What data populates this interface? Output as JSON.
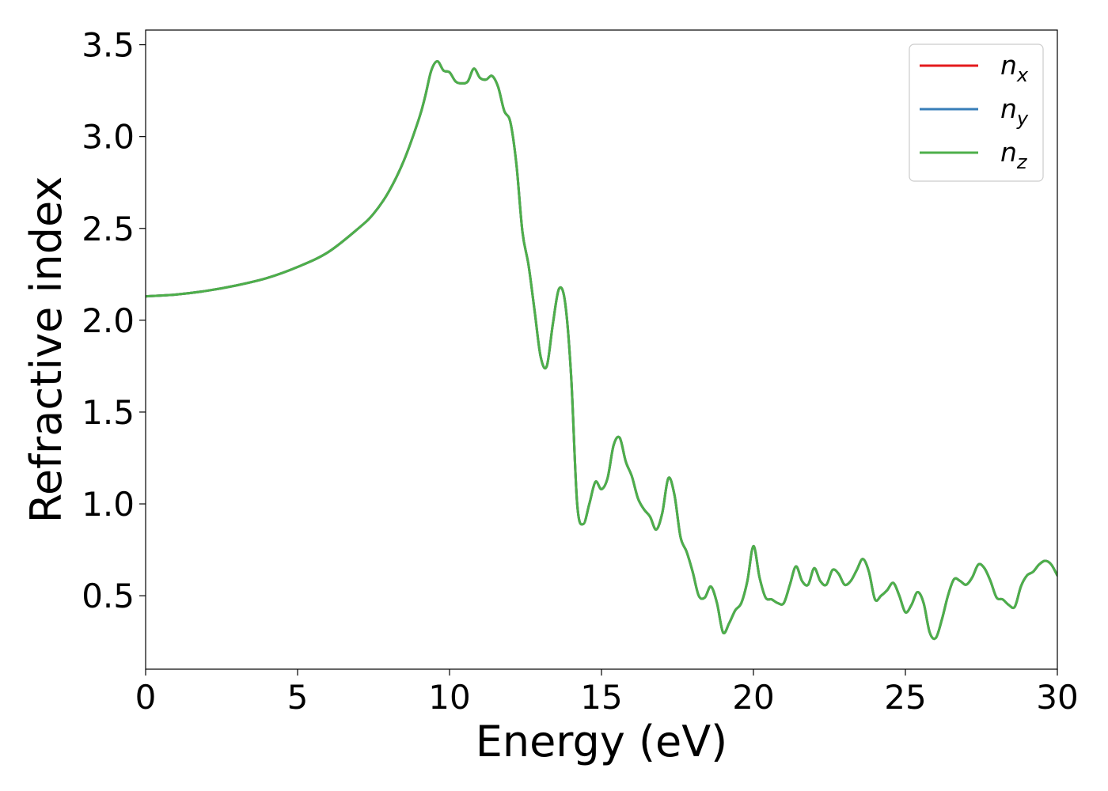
{
  "chart_data": {
    "type": "line",
    "xlabel": "Energy (eV)",
    "ylabel": "Refractive index",
    "xlim": [
      0,
      30
    ],
    "ylim": [
      0.1,
      3.58
    ],
    "xticks": [
      0,
      5,
      10,
      15,
      20,
      25,
      30
    ],
    "xtick_labels": [
      "0",
      "5",
      "10",
      "15",
      "20",
      "25",
      "30"
    ],
    "yticks": [
      0.5,
      1.0,
      1.5,
      2.0,
      2.5,
      3.0,
      3.5
    ],
    "ytick_labels": [
      "0.5",
      "1.0",
      "1.5",
      "2.0",
      "2.5",
      "3.0",
      "3.5"
    ],
    "grid": false,
    "legend_position": "top-right",
    "x": [
      0,
      1,
      2,
      3,
      4,
      5,
      6,
      7,
      7.5,
      8,
      8.5,
      9,
      9.2,
      9.4,
      9.6,
      9.8,
      10.0,
      10.2,
      10.4,
      10.6,
      10.8,
      11.0,
      11.2,
      11.4,
      11.6,
      11.8,
      12.0,
      12.2,
      12.4,
      12.6,
      12.8,
      13.0,
      13.2,
      13.4,
      13.6,
      13.8,
      14.0,
      14.2,
      14.4,
      14.6,
      14.8,
      15.0,
      15.2,
      15.4,
      15.6,
      15.8,
      16.0,
      16.2,
      16.4,
      16.6,
      16.8,
      17.0,
      17.2,
      17.4,
      17.6,
      17.8,
      18.0,
      18.2,
      18.4,
      18.6,
      18.8,
      19.0,
      19.2,
      19.4,
      19.6,
      19.8,
      20.0,
      20.2,
      20.4,
      20.6,
      20.8,
      21.0,
      21.2,
      21.4,
      21.6,
      21.8,
      22.0,
      22.2,
      22.4,
      22.6,
      22.8,
      23.0,
      23.2,
      23.4,
      23.6,
      23.8,
      24.0,
      24.2,
      24.4,
      24.6,
      24.8,
      25.0,
      25.2,
      25.4,
      25.6,
      25.8,
      26.0,
      26.2,
      26.4,
      26.6,
      26.8,
      27.0,
      27.2,
      27.4,
      27.6,
      27.8,
      28.0,
      28.2,
      28.4,
      28.6,
      28.8,
      29.0,
      29.2,
      29.4,
      29.6,
      29.8,
      30.0
    ],
    "series": [
      {
        "name": "n_x",
        "color": "#e41a1c",
        "values": [
          2.13,
          2.14,
          2.16,
          2.19,
          2.23,
          2.29,
          2.37,
          2.5,
          2.58,
          2.7,
          2.87,
          3.1,
          3.22,
          3.36,
          3.41,
          3.36,
          3.35,
          3.3,
          3.29,
          3.3,
          3.37,
          3.32,
          3.31,
          3.33,
          3.27,
          3.14,
          3.08,
          2.85,
          2.48,
          2.3,
          2.05,
          1.8,
          1.75,
          1.98,
          2.17,
          2.1,
          1.7,
          1.0,
          0.89,
          1.0,
          1.12,
          1.08,
          1.14,
          1.32,
          1.36,
          1.23,
          1.15,
          1.03,
          0.97,
          0.93,
          0.86,
          0.95,
          1.14,
          1.05,
          0.82,
          0.74,
          0.63,
          0.5,
          0.49,
          0.55,
          0.46,
          0.3,
          0.35,
          0.42,
          0.46,
          0.58,
          0.77,
          0.6,
          0.49,
          0.48,
          0.46,
          0.46,
          0.56,
          0.66,
          0.58,
          0.56,
          0.65,
          0.58,
          0.56,
          0.64,
          0.62,
          0.56,
          0.58,
          0.64,
          0.7,
          0.63,
          0.48,
          0.5,
          0.53,
          0.57,
          0.5,
          0.41,
          0.45,
          0.52,
          0.46,
          0.3,
          0.27,
          0.37,
          0.5,
          0.59,
          0.58,
          0.56,
          0.6,
          0.67,
          0.65,
          0.58,
          0.49,
          0.48,
          0.45,
          0.44,
          0.55,
          0.61,
          0.63,
          0.67,
          0.69,
          0.67,
          0.61
        ]
      },
      {
        "name": "n_y",
        "color": "#377eb8",
        "values": [
          2.13,
          2.14,
          2.16,
          2.19,
          2.23,
          2.29,
          2.37,
          2.5,
          2.58,
          2.7,
          2.87,
          3.1,
          3.22,
          3.36,
          3.41,
          3.36,
          3.35,
          3.3,
          3.29,
          3.3,
          3.37,
          3.32,
          3.31,
          3.33,
          3.27,
          3.14,
          3.08,
          2.85,
          2.48,
          2.3,
          2.05,
          1.8,
          1.75,
          1.98,
          2.17,
          2.1,
          1.7,
          1.0,
          0.89,
          1.0,
          1.12,
          1.08,
          1.14,
          1.32,
          1.36,
          1.23,
          1.15,
          1.03,
          0.97,
          0.93,
          0.86,
          0.95,
          1.14,
          1.05,
          0.82,
          0.74,
          0.63,
          0.5,
          0.49,
          0.55,
          0.46,
          0.3,
          0.35,
          0.42,
          0.46,
          0.58,
          0.77,
          0.6,
          0.49,
          0.48,
          0.46,
          0.46,
          0.56,
          0.66,
          0.58,
          0.56,
          0.65,
          0.58,
          0.56,
          0.64,
          0.62,
          0.56,
          0.58,
          0.64,
          0.7,
          0.63,
          0.48,
          0.5,
          0.53,
          0.57,
          0.5,
          0.41,
          0.45,
          0.52,
          0.46,
          0.3,
          0.27,
          0.37,
          0.5,
          0.59,
          0.58,
          0.56,
          0.6,
          0.67,
          0.65,
          0.58,
          0.49,
          0.48,
          0.45,
          0.44,
          0.55,
          0.61,
          0.63,
          0.67,
          0.69,
          0.67,
          0.61
        ]
      },
      {
        "name": "n_z",
        "color": "#4daf4a",
        "values": [
          2.13,
          2.14,
          2.16,
          2.19,
          2.23,
          2.29,
          2.37,
          2.5,
          2.58,
          2.7,
          2.87,
          3.1,
          3.22,
          3.36,
          3.41,
          3.36,
          3.35,
          3.3,
          3.29,
          3.3,
          3.37,
          3.32,
          3.31,
          3.33,
          3.27,
          3.14,
          3.08,
          2.85,
          2.48,
          2.3,
          2.05,
          1.8,
          1.75,
          1.98,
          2.17,
          2.1,
          1.7,
          1.0,
          0.89,
          1.0,
          1.12,
          1.08,
          1.14,
          1.32,
          1.36,
          1.23,
          1.15,
          1.03,
          0.97,
          0.93,
          0.86,
          0.95,
          1.14,
          1.05,
          0.82,
          0.74,
          0.63,
          0.5,
          0.49,
          0.55,
          0.46,
          0.3,
          0.35,
          0.42,
          0.46,
          0.58,
          0.77,
          0.6,
          0.49,
          0.48,
          0.46,
          0.46,
          0.56,
          0.66,
          0.58,
          0.56,
          0.65,
          0.58,
          0.56,
          0.64,
          0.62,
          0.56,
          0.58,
          0.64,
          0.7,
          0.63,
          0.48,
          0.5,
          0.53,
          0.57,
          0.5,
          0.41,
          0.45,
          0.52,
          0.46,
          0.3,
          0.27,
          0.37,
          0.5,
          0.59,
          0.58,
          0.56,
          0.6,
          0.67,
          0.65,
          0.58,
          0.49,
          0.48,
          0.45,
          0.44,
          0.55,
          0.61,
          0.63,
          0.67,
          0.69,
          0.67,
          0.61
        ]
      }
    ],
    "legend": [
      {
        "base": "n",
        "sub": "x"
      },
      {
        "base": "n",
        "sub": "y"
      },
      {
        "base": "n",
        "sub": "z"
      }
    ]
  }
}
